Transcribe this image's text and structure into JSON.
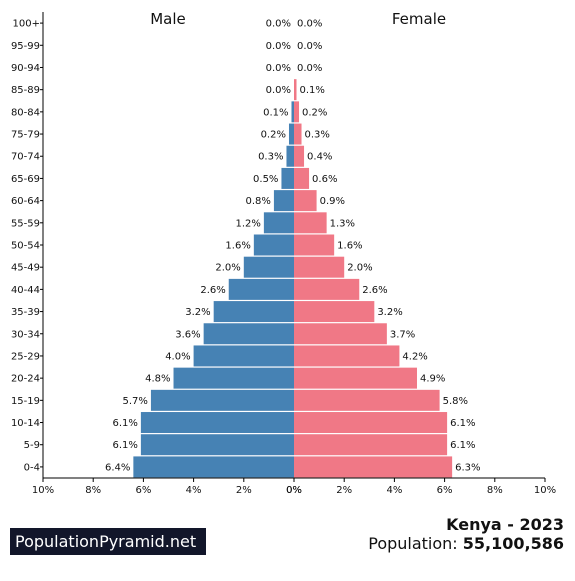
{
  "chart_data": {
    "type": "bar",
    "orientation": "horizontal-population-pyramid",
    "categories": [
      "0-4",
      "5-9",
      "10-14",
      "15-19",
      "20-24",
      "25-29",
      "30-34",
      "35-39",
      "40-44",
      "45-49",
      "50-54",
      "55-59",
      "60-64",
      "65-69",
      "70-74",
      "75-79",
      "80-84",
      "85-89",
      "90-94",
      "95-99",
      "100+"
    ],
    "series": [
      {
        "name": "Male",
        "color": "#4682b4",
        "values": [
          6.4,
          6.1,
          6.1,
          5.7,
          4.8,
          4.0,
          3.6,
          3.2,
          2.6,
          2.0,
          1.6,
          1.2,
          0.8,
          0.5,
          0.3,
          0.2,
          0.1,
          0.0,
          0.0,
          0.0,
          0.0
        ]
      },
      {
        "name": "Female",
        "color": "#f07886",
        "values": [
          6.3,
          6.1,
          6.1,
          5.8,
          4.9,
          4.2,
          3.7,
          3.2,
          2.6,
          2.0,
          1.6,
          1.3,
          0.9,
          0.6,
          0.4,
          0.3,
          0.2,
          0.1,
          0.0,
          0.0,
          0.0
        ]
      }
    ],
    "value_labels": {
      "male": [
        "6.4%",
        "6.1%",
        "6.1%",
        "5.7%",
        "4.8%",
        "4.0%",
        "3.6%",
        "3.2%",
        "2.6%",
        "2.0%",
        "1.6%",
        "1.2%",
        "0.8%",
        "0.5%",
        "0.3%",
        "0.2%",
        "0.1%",
        "0.0%",
        "0.0%",
        "0.0%",
        "0.0%"
      ],
      "female": [
        "6.3%",
        "6.1%",
        "6.1%",
        "5.8%",
        "4.9%",
        "4.2%",
        "3.7%",
        "3.2%",
        "2.6%",
        "2.0%",
        "1.6%",
        "1.3%",
        "0.9%",
        "0.6%",
        "0.4%",
        "0.3%",
        "0.2%",
        "0.1%",
        "0.0%",
        "0.0%",
        "0.0%"
      ]
    },
    "xlim": [
      0,
      10
    ],
    "x_tick_labels_left": [
      "10%",
      "8%",
      "6%",
      "4%",
      "2%",
      "0%"
    ],
    "x_tick_labels_right": [
      "0%",
      "2%",
      "4%",
      "6%",
      "8%",
      "10%"
    ],
    "grid": false,
    "legend": "side titles"
  },
  "footer": {
    "brand": "PopulationPyramid.net",
    "title": "Kenya - 2023",
    "population_label": "Population:",
    "population_value": "55,100,586"
  }
}
